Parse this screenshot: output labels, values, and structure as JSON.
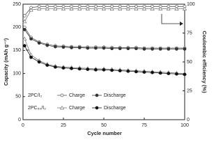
{
  "chart_data": {
    "type": "line",
    "xlabel": "Cycle number",
    "ylabel": "Capacity (mAh g⁻¹)",
    "y2label": "Coulombic efficiency (%)",
    "x": [
      1,
      5,
      10,
      15,
      20,
      25,
      30,
      35,
      40,
      45,
      50,
      55,
      60,
      65,
      70,
      75,
      80,
      85,
      90,
      95,
      100
    ],
    "xlim": [
      0,
      100
    ],
    "xticks": [
      0,
      25,
      50,
      75,
      100
    ],
    "ylim": [
      0,
      250
    ],
    "yticks": [
      0,
      50,
      100,
      150,
      200,
      250
    ],
    "y2lim": [
      0,
      100
    ],
    "y2ticks": [
      0,
      25,
      50,
      75,
      100
    ],
    "series": [
      {
        "group": "2PC/I₂",
        "name": "Charge",
        "color": "#555555",
        "marker": "circle",
        "filled": false,
        "values": [
          200,
          178,
          168,
          163,
          160,
          159,
          158,
          158,
          157,
          157,
          157,
          156,
          156,
          156,
          156,
          155,
          155,
          155,
          155,
          155,
          155
        ]
      },
      {
        "name": "Discharge",
        "color": "#333333",
        "marker": "circle",
        "filled": true,
        "values": [
          195,
          175,
          166,
          161,
          158,
          157,
          156,
          156,
          155,
          155,
          155,
          154,
          154,
          154,
          154,
          153,
          153,
          153,
          153,
          153,
          153
        ]
      },
      {
        "group": "2PC₅₀/I₂",
        "name": "Charge",
        "color": "#777777",
        "marker": "triangle",
        "filled": false,
        "values": [
          175,
          140,
          128,
          120,
          116,
          114,
          113,
          112,
          111,
          110,
          110,
          109,
          108,
          107,
          106,
          105,
          104,
          103,
          102,
          101,
          100
        ]
      },
      {
        "name": "Discharge",
        "color": "#111111",
        "marker": "circle",
        "filled": true,
        "values": [
          160,
          135,
          125,
          118,
          114,
          112,
          111,
          110,
          109,
          108,
          108,
          107,
          106,
          105,
          104,
          103,
          102,
          101,
          100,
          99,
          98
        ]
      },
      {
        "axis": "y2",
        "color": "#555555",
        "marker": "circle",
        "filled": false,
        "values": [
          90,
          97,
          98,
          98,
          98,
          98,
          98,
          98,
          98,
          98,
          98,
          98,
          98,
          98,
          98,
          98,
          98,
          98,
          98,
          98,
          98
        ]
      },
      {
        "axis": "y2",
        "color": "#777777",
        "marker": "triangle",
        "filled": false,
        "values": [
          85,
          95,
          96,
          96,
          96,
          96,
          96,
          96,
          96,
          96,
          96,
          96,
          96,
          96,
          96,
          96,
          96,
          96,
          96,
          96,
          96
        ]
      }
    ]
  }
}
